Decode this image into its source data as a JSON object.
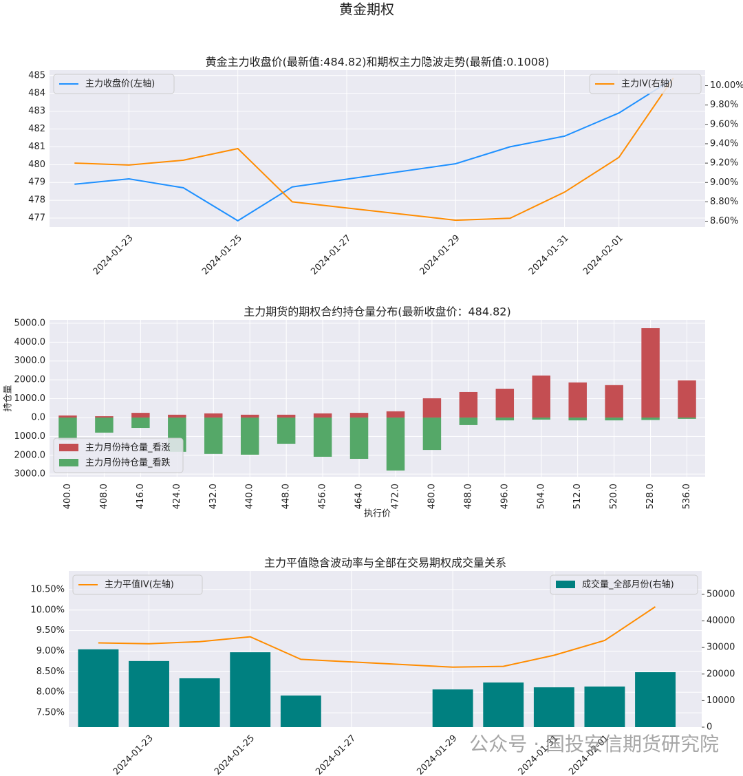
{
  "title": "黄金期权",
  "watermark": "公众号 · 国投安信期货研究院",
  "chart_data": [
    {
      "type": "line",
      "title": "黄金主力收盘价(最新值:484.82)和期权主力隐波走势(最新值:0.1008)",
      "x": [
        "2024-01-22",
        "2024-01-23",
        "2024-01-24",
        "2024-01-25",
        "2024-01-26",
        "2024-01-29",
        "2024-01-30",
        "2024-01-31",
        "2024-02-01",
        "2024-02-02"
      ],
      "xlim": [
        "2024-01-21T13:00:00Z",
        "2024-02-02T14:00:00Z"
      ],
      "xticks": [
        "2024-01-23",
        "2024-01-25",
        "2024-01-27",
        "2024-01-29",
        "2024-01-31",
        "2024-02-01"
      ],
      "ylim": [
        476.5,
        485.3
      ],
      "yticks": [
        477,
        478,
        479,
        480,
        481,
        482,
        483,
        484,
        485
      ],
      "y2lim": [
        8.54,
        10.16
      ],
      "y2ticks": [
        {
          "value": 8.6,
          "label": "8.60%"
        },
        {
          "value": 8.8,
          "label": "8.80%"
        },
        {
          "value": 9.0,
          "label": "9.00%"
        },
        {
          "value": 9.2,
          "label": "9.20%"
        },
        {
          "value": 9.4,
          "label": "9.40%"
        },
        {
          "value": 9.6,
          "label": "9.60%"
        },
        {
          "value": 9.8,
          "label": "9.80%"
        },
        {
          "value": 10.0,
          "label": "10.00%"
        }
      ],
      "grid": true,
      "legend_loc": "upper left",
      "legend2_loc": "upper right",
      "series": [
        {
          "name": "主力收盘价(左轴)",
          "color": "#1e90ff",
          "values": [
            478.9,
            479.2,
            478.7,
            476.85,
            478.75,
            480.05,
            481.0,
            481.6,
            482.9,
            484.82
          ]
        },
        {
          "name": "主力IV(右轴)",
          "color": "#ff8c00",
          "axis": "y2",
          "values": [
            9.2,
            9.18,
            9.23,
            9.35,
            8.8,
            8.61,
            8.63,
            8.9,
            9.26,
            10.08
          ]
        }
      ]
    },
    {
      "type": "bar",
      "stacked": true,
      "title": "主力期货的期权合约持仓量分布(最新收盘价：484.82)",
      "xlabel": "执行价",
      "ylabel": "持仓量",
      "categories": [
        "400.0",
        "408.0",
        "416.0",
        "424.0",
        "432.0",
        "440.0",
        "448.0",
        "456.0",
        "464.0",
        "472.0",
        "480.0",
        "488.0",
        "496.0",
        "504.0",
        "512.0",
        "520.0",
        "528.0",
        "536.0"
      ],
      "ylim": [
        -3140,
        5180
      ],
      "yticks": [
        {
          "value": -3000,
          "label": "3000.0"
        },
        {
          "value": -2000,
          "label": "2000.0"
        },
        {
          "value": -1000,
          "label": "1000.0"
        },
        {
          "value": 0,
          "label": "0.0"
        },
        {
          "value": 1000,
          "label": "1000.0"
        },
        {
          "value": 2000,
          "label": "2000.0"
        },
        {
          "value": 3000,
          "label": "3000.0"
        },
        {
          "value": 4000,
          "label": "4000.0"
        },
        {
          "value": 5000,
          "label": "5000.0"
        }
      ],
      "grid": true,
      "legend_loc": "lower left",
      "series": [
        {
          "name": "主力月份持仓量_看涨",
          "color": "#c44e52",
          "values": [
            110,
            70,
            250,
            150,
            220,
            150,
            150,
            220,
            250,
            330,
            1020,
            1350,
            1530,
            2230,
            1860,
            1720,
            4740,
            1970
          ]
        },
        {
          "name": "主力月份持仓量_看跌",
          "color": "#55a868",
          "values": [
            -1200,
            -800,
            -550,
            -1820,
            -1930,
            -1970,
            -1390,
            -2080,
            -2190,
            -2810,
            -1720,
            -400,
            -150,
            -110,
            -150,
            -150,
            -130,
            -70
          ]
        }
      ]
    },
    {
      "type": "line",
      "title": "主力平值隐含波动率与全部在交易期权成交量关系",
      "x": [
        "2024-01-22",
        "2024-01-23",
        "2024-01-24",
        "2024-01-25",
        "2024-01-26",
        "2024-01-29",
        "2024-01-30",
        "2024-01-31",
        "2024-02-01",
        "2024-02-02"
      ],
      "xlim": [
        "2024-01-21T10:00:00Z",
        "2024-02-02T22:00:00Z"
      ],
      "xticks": [
        "2024-01-23",
        "2024-01-25",
        "2024-01-27",
        "2024-01-29",
        "2024-01-31",
        "2024-02-01"
      ],
      "ylim": [
        7.15,
        10.95
      ],
      "yticks": [
        {
          "value": 7.5,
          "label": "7.50%"
        },
        {
          "value": 8.0,
          "label": "8.00%"
        },
        {
          "value": 8.5,
          "label": "8.50%"
        },
        {
          "value": 9.0,
          "label": "9.00%"
        },
        {
          "value": 9.5,
          "label": "9.50%"
        },
        {
          "value": 10.0,
          "label": "10.00%"
        },
        {
          "value": 10.5,
          "label": "10.50%"
        }
      ],
      "y2lim": [
        0,
        58800
      ],
      "y2ticks": [
        0,
        10000,
        20000,
        30000,
        40000,
        50000
      ],
      "grid": true,
      "legend_loc": "upper left",
      "legend2_loc": "upper right",
      "series": [
        {
          "name": "主力平值IV(左轴)",
          "color": "#ff8c00",
          "values": [
            9.2,
            9.18,
            9.23,
            9.35,
            8.8,
            8.61,
            8.63,
            8.9,
            9.26,
            10.08
          ]
        },
        {
          "name": "成交量_全部月份(右轴)",
          "color": "#008080",
          "type": "bar",
          "axis": "y2",
          "values": [
            29300,
            24900,
            18400,
            28200,
            11900,
            14200,
            16800,
            15000,
            15300,
            20700
          ]
        }
      ]
    }
  ]
}
